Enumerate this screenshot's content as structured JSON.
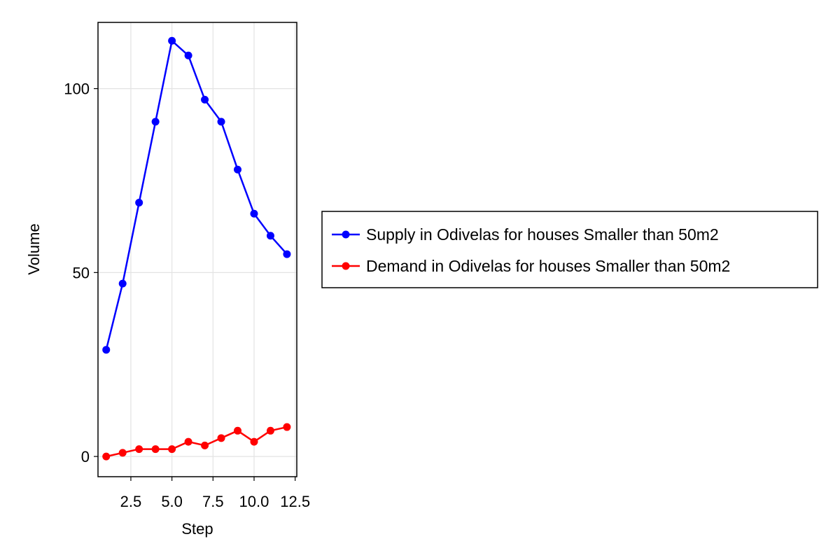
{
  "chart_data": {
    "type": "line",
    "title": "",
    "xlabel": "Step",
    "ylabel": "Volume",
    "xlim": [
      0.5,
      12.6
    ],
    "ylim": [
      -5.5,
      118
    ],
    "grid": true,
    "legend_position": "right",
    "x_ticks": [
      {
        "value": 2.5,
        "label": "2.5"
      },
      {
        "value": 5.0,
        "label": "5.0"
      },
      {
        "value": 7.5,
        "label": "7.5"
      },
      {
        "value": 10.0,
        "label": "10.0"
      },
      {
        "value": 12.5,
        "label": "12.5"
      }
    ],
    "y_ticks": [
      {
        "value": 0,
        "label": "0"
      },
      {
        "value": 50,
        "label": "50"
      },
      {
        "value": 100,
        "label": "100"
      }
    ],
    "x": [
      1,
      2,
      3,
      4,
      5,
      6,
      7,
      8,
      9,
      10,
      11,
      12
    ],
    "series": [
      {
        "name": "Supply in Odivelas for houses Smaller than 50m2",
        "color": "#0000ff",
        "values": [
          29,
          47,
          69,
          91,
          113,
          109,
          97,
          91,
          78,
          66,
          60,
          55
        ]
      },
      {
        "name": "Demand in Odivelas for houses Smaller than 50m2",
        "color": "#ff0000",
        "values": [
          0,
          1,
          2,
          2,
          2,
          4,
          3,
          5,
          7,
          4,
          7,
          8
        ]
      }
    ]
  }
}
